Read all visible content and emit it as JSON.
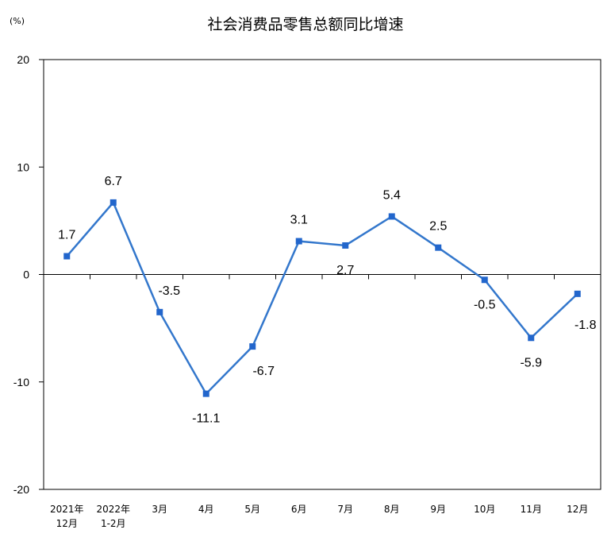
{
  "chart_data": {
    "type": "line",
    "title": "社会消费品零售总额同比增速",
    "unit_label": "(%)",
    "ylim": [
      -20,
      20
    ],
    "yticks": [
      "20",
      "10",
      "0",
      "-10",
      "-20"
    ],
    "ytick_values": [
      20,
      10,
      0,
      -10,
      -20
    ],
    "categories": [
      [
        "2021年",
        "12月"
      ],
      [
        "2022年",
        "1-2月"
      ],
      [
        "3月"
      ],
      [
        "4月"
      ],
      [
        "5月"
      ],
      [
        "6月"
      ],
      [
        "7月"
      ],
      [
        "8月"
      ],
      [
        "9月"
      ],
      [
        "10月"
      ],
      [
        "11月"
      ],
      [
        "12月"
      ]
    ],
    "values": [
      1.7,
      6.7,
      -3.5,
      -11.1,
      -6.7,
      3.1,
      2.7,
      5.4,
      2.5,
      -0.5,
      -5.9,
      -1.8
    ],
    "data_labels": [
      "1.7",
      "6.7",
      "-3.5",
      "-11.1",
      "-6.7",
      "3.1",
      "2.7",
      "5.4",
      "2.5",
      "-0.5",
      "-5.9",
      "-1.8"
    ],
    "line_color": "#3377cc",
    "marker_color": "#2266cc",
    "grid": false
  }
}
